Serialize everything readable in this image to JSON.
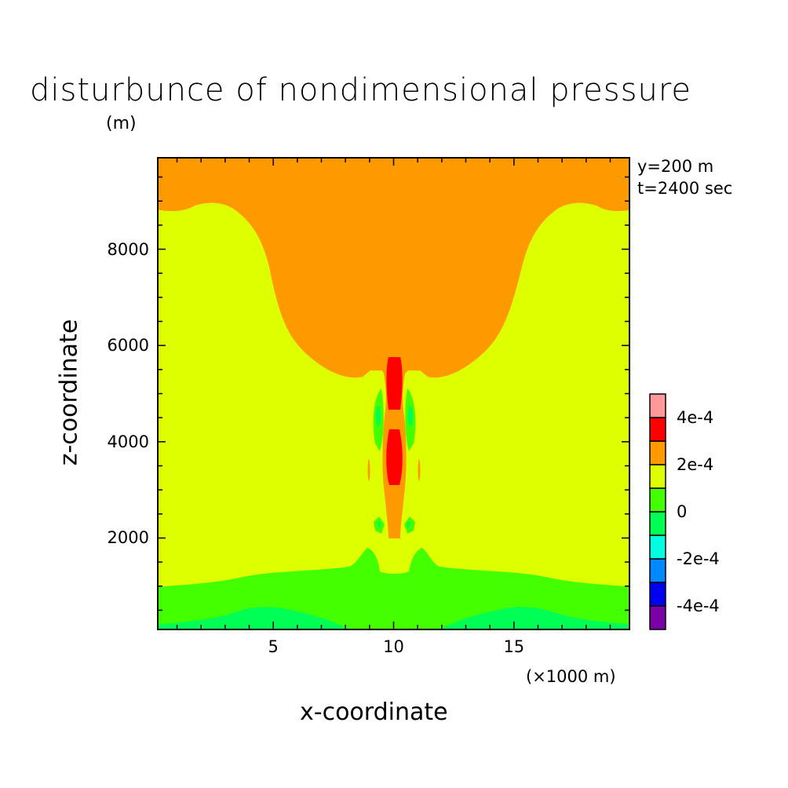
{
  "chart_data": {
    "type": "heatmap",
    "title": "disturbunce of nondimensional pressure",
    "ylabel": "z-coordinate",
    "yunit": "(m)",
    "xlabel": "x-coordinate",
    "xunit": "(×1000 m)",
    "annotations": [
      "y=200 m",
      "t=2400 sec"
    ],
    "xlim": [
      0.2,
      19.8
    ],
    "ylim": [
      100,
      9900
    ],
    "xticks": [
      "5",
      "10",
      "15"
    ],
    "xtick_values": [
      5,
      10,
      15
    ],
    "yticks": [
      "2000",
      "4000",
      "6000",
      "8000"
    ],
    "ytick_values": [
      2000,
      4000,
      6000,
      8000
    ],
    "colorbar": {
      "levels": [
        -0.0005,
        -0.0004,
        -0.0003,
        -0.0002,
        -0.0001,
        0,
        0.0001,
        0.0002,
        0.0003,
        0.0004,
        0.0005
      ],
      "labels": [
        "4e-4",
        "2e-4",
        "0",
        "-2e-4",
        "-4e-4"
      ],
      "label_values": [
        0.0004,
        0.0002,
        0,
        -0.0002,
        -0.0004
      ],
      "colors": [
        "#7a00a6",
        "#0000f0",
        "#0088ff",
        "#00ffe0",
        "#00ff55",
        "#44ff00",
        "#ddff00",
        "#ff9900",
        "#ff0000",
        "#ff9999"
      ]
    }
  }
}
